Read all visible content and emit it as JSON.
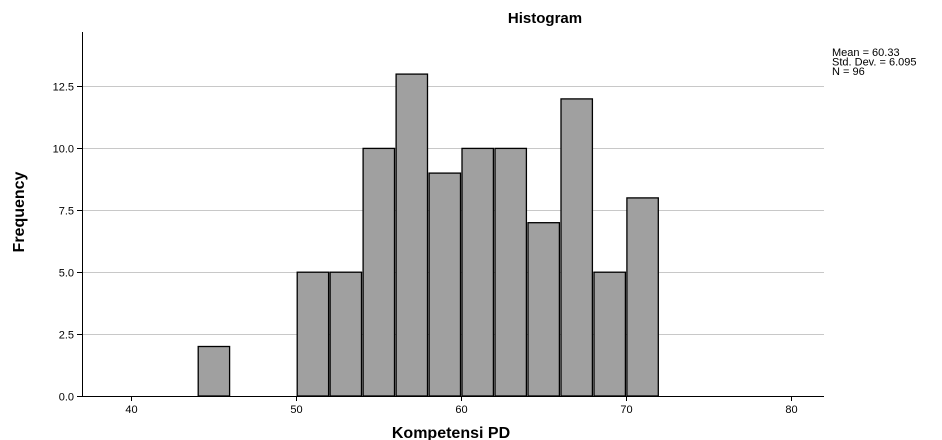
{
  "chart_data": {
    "type": "bar",
    "title": "Histogram",
    "xlabel": "Kompetensi PD",
    "ylabel": "Frequency",
    "x_ticks": [
      40,
      50,
      60,
      70,
      80
    ],
    "y_ticks": [
      0,
      2.5,
      5,
      7.5,
      10,
      12.5
    ],
    "y_tick_labels": [
      "0.0",
      "2.5",
      "5.0",
      "7.5",
      "10.0",
      "12.5"
    ],
    "xlim": [
      37,
      82
    ],
    "ylim": [
      0,
      14.7
    ],
    "grid": true,
    "bin_width": 2,
    "bins": [
      {
        "start": 44,
        "end": 46,
        "value": 2
      },
      {
        "start": 50,
        "end": 52,
        "value": 5
      },
      {
        "start": 52,
        "end": 54,
        "value": 5
      },
      {
        "start": 54,
        "end": 56,
        "value": 10
      },
      {
        "start": 56,
        "end": 58,
        "value": 13
      },
      {
        "start": 58,
        "end": 60,
        "value": 9
      },
      {
        "start": 60,
        "end": 62,
        "value": 10
      },
      {
        "start": 62,
        "end": 64,
        "value": 10
      },
      {
        "start": 64,
        "end": 66,
        "value": 7
      },
      {
        "start": 66,
        "end": 68,
        "value": 12
      },
      {
        "start": 68,
        "end": 70,
        "value": 5
      },
      {
        "start": 70,
        "end": 72,
        "value": 8
      }
    ],
    "stats_lines": [
      "Mean = 60.33",
      "Std. Dev. = 6.095",
      "N = 96"
    ],
    "stats_placement": "top-right",
    "bar_color": "#a0a0a0"
  }
}
